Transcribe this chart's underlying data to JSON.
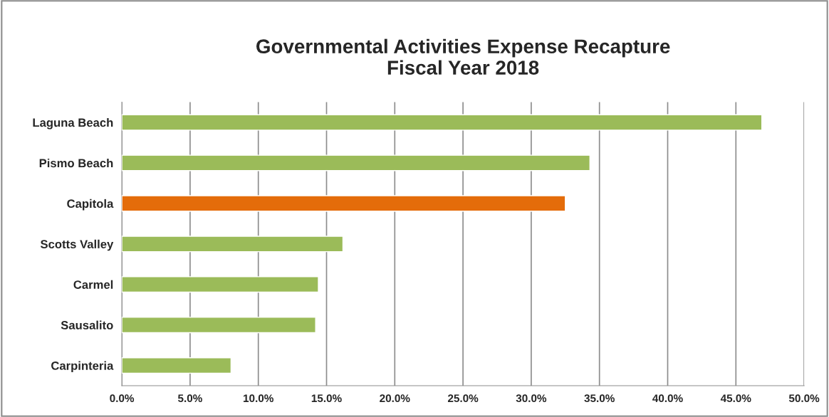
{
  "chart_data": {
    "type": "bar",
    "orientation": "horizontal",
    "title": "Governmental Activities Expense Recapture\nFiscal Year 2018",
    "categories": [
      "Laguna Beach",
      "Pismo Beach",
      "Capitola",
      "Scotts Valley",
      "Carmel",
      "Sausalito",
      "Carpinteria"
    ],
    "values": [
      46.9,
      34.3,
      32.5,
      16.2,
      14.4,
      14.2,
      8.0
    ],
    "colors": [
      "#9bbb59",
      "#9bbb59",
      "#e46c0a",
      "#9bbb59",
      "#9bbb59",
      "#9bbb59",
      "#9bbb59"
    ],
    "xlim": [
      0,
      50
    ],
    "xticks": [
      {
        "value": 0,
        "label": "0.0%"
      },
      {
        "value": 5,
        "label": "5.0%"
      },
      {
        "value": 10,
        "label": "10.0%"
      },
      {
        "value": 15,
        "label": "15.0%"
      },
      {
        "value": 20,
        "label": "20.0%"
      },
      {
        "value": 25,
        "label": "25.0%"
      },
      {
        "value": 30,
        "label": "30.0%"
      },
      {
        "value": 35,
        "label": "35.0%"
      },
      {
        "value": 40,
        "label": "40.0%"
      },
      {
        "value": 45,
        "label": "45.0%"
      },
      {
        "value": 50,
        "label": "50.0%"
      }
    ],
    "grid": "x"
  }
}
